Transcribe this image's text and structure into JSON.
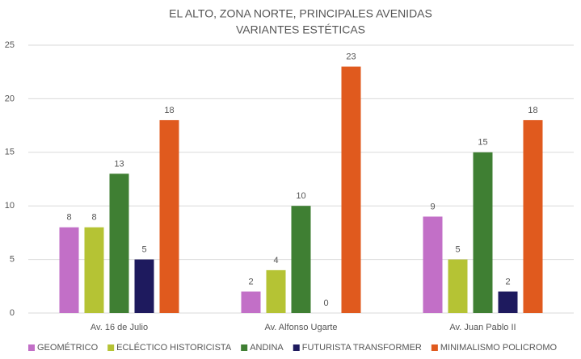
{
  "chart_data": {
    "type": "bar",
    "title": "EL ALTO, ZONA NORTE, PRINCIPALES AVENIDAS",
    "subtitle": "VARIANTES ESTÉTICAS",
    "categories": [
      "Av. 16 de Julio",
      "Av. Alfonso Ugarte",
      "Av. Juan Pablo II"
    ],
    "series": [
      {
        "name": "GEOMÉTRICO",
        "color": "#c26fc7",
        "values": [
          8,
          2,
          9
        ]
      },
      {
        "name": "ECLÉCTICO HISTORICISTA",
        "color": "#b5c334",
        "values": [
          8,
          4,
          5
        ]
      },
      {
        "name": "ANDINA",
        "color": "#3f7f33",
        "values": [
          13,
          10,
          15
        ]
      },
      {
        "name": "FUTURISTA TRANSFORMER",
        "color": "#1e1a5e",
        "values": [
          5,
          0,
          2
        ]
      },
      {
        "name": "MINIMALISMO POLICROMO",
        "color": "#e05a1e",
        "values": [
          18,
          23,
          18
        ]
      }
    ],
    "ylim": [
      0,
      25
    ],
    "yticks": [
      0,
      5,
      10,
      15,
      20,
      25
    ],
    "grid": true,
    "legend": "bottom"
  }
}
